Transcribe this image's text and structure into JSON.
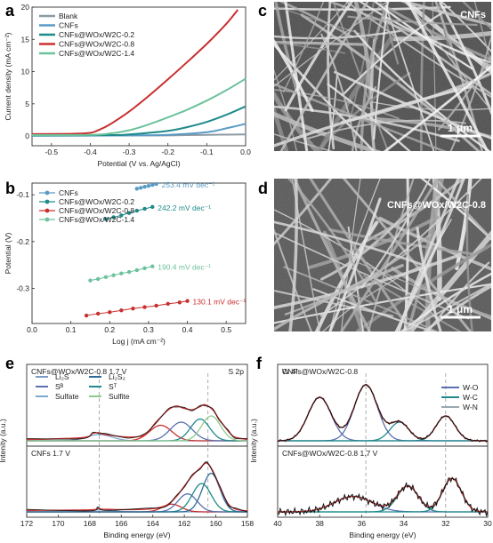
{
  "chart_data": [
    {
      "panel": "a",
      "type": "line",
      "xlabel": "Potential (V vs. Ag/AgCl)",
      "ylabel": "Current density (mA cm⁻²)",
      "xlim": [
        -0.55,
        0.0
      ],
      "ylim": [
        -1.5,
        20
      ],
      "xticks": [
        -0.5,
        -0.4,
        -0.3,
        -0.2,
        -0.1,
        0.0
      ],
      "xtick_labels": [
        "-0.5",
        "-0.4",
        "-0.3",
        "-0.2",
        "-0.1",
        "0.0"
      ],
      "yticks": [
        0,
        5,
        10,
        15,
        20
      ],
      "ytick_labels": [
        "0",
        "5",
        "10",
        "15",
        "20"
      ],
      "legend_position": "top-left",
      "series": [
        {
          "name": "Blank",
          "color": "#8c9aa3",
          "x": [
            -0.55,
            -0.4,
            -0.3,
            -0.2,
            -0.1,
            0.0
          ],
          "y": [
            0.1,
            0.1,
            0.1,
            0.1,
            0.2,
            0.25
          ]
        },
        {
          "name": "CNFs",
          "color": "#5a9bc4",
          "x": [
            -0.55,
            -0.3,
            -0.2,
            -0.1,
            -0.05,
            0.0
          ],
          "y": [
            0.05,
            0.1,
            0.2,
            0.6,
            1.2,
            1.9
          ]
        },
        {
          "name": "CNFs@WOx/W2C-0.2",
          "color": "#1f8a8a",
          "x": [
            -0.55,
            -0.35,
            -0.3,
            -0.2,
            -0.15,
            -0.1,
            -0.05,
            0.0
          ],
          "y": [
            0.1,
            0.15,
            0.25,
            0.8,
            1.4,
            2.2,
            3.3,
            4.6
          ]
        },
        {
          "name": "CNFs@WOx/W2C-0.8",
          "color": "#c8302f",
          "x": [
            -0.55,
            -0.45,
            -0.4,
            -0.38,
            -0.35,
            -0.3,
            -0.25,
            -0.2,
            -0.15,
            -0.1,
            -0.05,
            -0.02
          ],
          "y": [
            0.3,
            0.35,
            0.5,
            0.9,
            1.8,
            3.8,
            6.2,
            8.8,
            11.5,
            14.3,
            17.4,
            19.6
          ]
        },
        {
          "name": "CNFs@WOx/W2C-1.4",
          "color": "#6cc29c",
          "x": [
            -0.55,
            -0.4,
            -0.35,
            -0.3,
            -0.25,
            -0.2,
            -0.15,
            -0.1,
            -0.05,
            0.0
          ],
          "y": [
            0.15,
            0.2,
            0.4,
            0.9,
            1.8,
            2.9,
            4.1,
            5.5,
            7.1,
            8.9
          ]
        }
      ]
    },
    {
      "panel": "b",
      "type": "scatter",
      "xlabel": "Log j (mA cm⁻²)",
      "ylabel": "Potential (V)",
      "xlim": [
        0.0,
        0.55
      ],
      "ylim": [
        -0.375,
        -0.075
      ],
      "xticks": [
        0.0,
        0.1,
        0.2,
        0.3,
        0.4,
        0.5
      ],
      "xtick_labels": [
        "0.0",
        "0.1",
        "0.2",
        "0.3",
        "0.4",
        "0.5"
      ],
      "yticks": [
        -0.1,
        -0.2,
        -0.3
      ],
      "ytick_labels": [
        "-0.1",
        "-0.2",
        "-0.3"
      ],
      "legend_position": "top-left",
      "series": [
        {
          "name": "CNFs",
          "color": "#5a9bc4",
          "tafel": "253.4 mV dec⁻¹",
          "x": [
            0.27,
            0.28,
            0.29,
            0.3,
            0.31,
            0.32
          ],
          "y": [
            -0.087,
            -0.085,
            -0.083,
            -0.081,
            -0.079,
            -0.077
          ]
        },
        {
          "name": "CNFs@WOx/W2C-0.2",
          "color": "#1f8a8a",
          "tafel": "242.2 mV dec⁻¹",
          "x": [
            0.19,
            0.21,
            0.23,
            0.25,
            0.27,
            0.29,
            0.31
          ],
          "y": [
            -0.152,
            -0.148,
            -0.144,
            -0.139,
            -0.134,
            -0.13,
            -0.126
          ]
        },
        {
          "name": "CNFs@WOx/W2C-0.8",
          "color": "#c8302f",
          "tafel": "130.1 mV dec⁻¹",
          "x": [
            0.14,
            0.17,
            0.2,
            0.23,
            0.26,
            0.29,
            0.32,
            0.35,
            0.38,
            0.4
          ],
          "y": [
            -0.358,
            -0.354,
            -0.351,
            -0.347,
            -0.343,
            -0.34,
            -0.337,
            -0.333,
            -0.33,
            -0.327
          ]
        },
        {
          "name": "CNFs@WOx/W2C-1.4",
          "color": "#6cc29c",
          "tafel": "190.4 mV dec⁻¹",
          "x": [
            0.15,
            0.17,
            0.19,
            0.21,
            0.23,
            0.25,
            0.27,
            0.29,
            0.31
          ],
          "y": [
            -0.283,
            -0.28,
            -0.276,
            -0.272,
            -0.268,
            -0.265,
            -0.261,
            -0.257,
            -0.253
          ]
        }
      ]
    },
    {
      "panel": "e",
      "type": "line",
      "xlabel": "Binding energy (eV)",
      "ylabel": "Intenity (a.u.)",
      "xlim": [
        172,
        158
      ],
      "xticks": [
        172,
        170,
        168,
        166,
        164,
        162,
        160,
        158
      ],
      "xtick_labels": [
        "172",
        "170",
        "168",
        "166",
        "164",
        "162",
        "160",
        "158"
      ],
      "corner_label": "S 2p",
      "legend": [
        "Li₂S",
        "Li₂S₂",
        "Sᴮ",
        "Sᵀ",
        "Sulfate",
        "Sulfite"
      ],
      "legend_colors": [
        "#7a9cc6",
        "#2e6b9a",
        "#5b6fb0",
        "#1f8a8a",
        "#7ea8cc",
        "#8ecb8e"
      ],
      "reference_lines_x": [
        167.4,
        160.5
      ],
      "subpanels": [
        {
          "label": "CNFs@WOx/W2C-0.8 1.7 V",
          "envelope": {
            "x": [
              172,
              168.5,
              167.8,
              167.4,
              167.0,
              165.5,
              164.5,
              163.8,
              163.0,
              162.5,
              162.0,
              161.5,
              161.0,
              160.7,
              160.2,
              159.8,
              159.2,
              158.8,
              158
            ],
            "y": [
              0.02,
              0.05,
              0.12,
              0.13,
              0.1,
              0.06,
              0.1,
              0.3,
              0.5,
              0.56,
              0.52,
              0.5,
              0.55,
              0.58,
              0.5,
              0.35,
              0.15,
              0.06,
              0.02
            ]
          },
          "peaks": [
            {
              "color": "#7ea8cc",
              "center": 167.4,
              "height": 0.1,
              "width": 0.8
            },
            {
              "color": "#c8302f",
              "center": 163.5,
              "height": 0.25,
              "width": 0.7
            },
            {
              "color": "#5b6fb0",
              "center": 162.2,
              "height": 0.3,
              "width": 0.7
            },
            {
              "color": "#1f8a8a",
              "center": 161.0,
              "height": 0.35,
              "width": 0.6
            },
            {
              "color": "#8ecb8e",
              "center": 160.3,
              "height": 0.4,
              "width": 0.6
            }
          ]
        },
        {
          "label": "CNFs 1.7 V",
          "envelope": {
            "x": [
              172,
              168.0,
              167.5,
              167.0,
              164.5,
              163.2,
              162.5,
              162.0,
              161.5,
              161.0,
              160.6,
              160.2,
              159.7,
              159.2,
              158.7,
              158
            ],
            "y": [
              0.03,
              0.04,
              0.07,
              0.05,
              0.05,
              0.12,
              0.3,
              0.5,
              0.7,
              0.85,
              0.95,
              0.8,
              0.45,
              0.15,
              0.05,
              0.02
            ]
          },
          "peaks": [
            {
              "color": "#7ea8cc",
              "center": 167.4,
              "height": 0.04,
              "width": 0.8
            },
            {
              "color": "#c8302f",
              "center": 162.8,
              "height": 0.15,
              "width": 0.6
            },
            {
              "color": "#5b6fb0",
              "center": 161.8,
              "height": 0.35,
              "width": 0.6
            },
            {
              "color": "#1f8a8a",
              "center": 160.9,
              "height": 0.55,
              "width": 0.6
            },
            {
              "color": "#2e6b9a",
              "center": 160.3,
              "height": 0.75,
              "width": 0.55
            }
          ]
        }
      ]
    },
    {
      "panel": "f",
      "type": "line",
      "xlabel": "Binding energy (eV)",
      "ylabel": "Intenity (a.u.)",
      "xlim": [
        40,
        30
      ],
      "xticks": [
        40,
        38,
        36,
        34,
        32,
        30
      ],
      "xtick_labels": [
        "40",
        "38",
        "36",
        "34",
        "32",
        "30"
      ],
      "corner_label": "W 4f",
      "legend": [
        "W-O",
        "W-C",
        "W-N"
      ],
      "legend_colors": [
        "#5b6fb0",
        "#1f8a8a",
        "#9aa7b0"
      ],
      "reference_lines_x": [
        35.8,
        32.0
      ],
      "subpanels": [
        {
          "label": "CNFs@WOx/W2C-0.8",
          "peaks": [
            {
              "color": "#5b6fb0",
              "center": 38.0,
              "height": 0.7,
              "width": 0.55
            },
            {
              "color": "#5b6fb0",
              "center": 35.8,
              "height": 0.9,
              "width": 0.55
            },
            {
              "color": "#1f8a8a",
              "center": 34.2,
              "height": 0.3,
              "width": 0.45
            },
            {
              "color": "#1f8a8a",
              "center": 32.0,
              "height": 0.4,
              "width": 0.45
            }
          ]
        },
        {
          "label": "CNFs@WOx/W2C-0.8 1.7 V",
          "peaks": [
            {
              "color": "#5b6fb0",
              "center": 36.4,
              "height": 0.3,
              "width": 0.9
            },
            {
              "color": "#1f8a8a",
              "center": 33.8,
              "height": 0.5,
              "width": 0.5
            },
            {
              "color": "#1f8a8a",
              "center": 31.7,
              "height": 0.65,
              "width": 0.45
            }
          ]
        }
      ]
    }
  ],
  "panel_letters": [
    "a",
    "b",
    "c",
    "d",
    "e",
    "f"
  ],
  "sem_images": [
    {
      "panel": "c",
      "label": "CNFs",
      "scale_bar": "1 μm"
    },
    {
      "panel": "d",
      "label": "CNFs@WOx/W2C-0.8",
      "scale_bar": "1 μm"
    }
  ]
}
